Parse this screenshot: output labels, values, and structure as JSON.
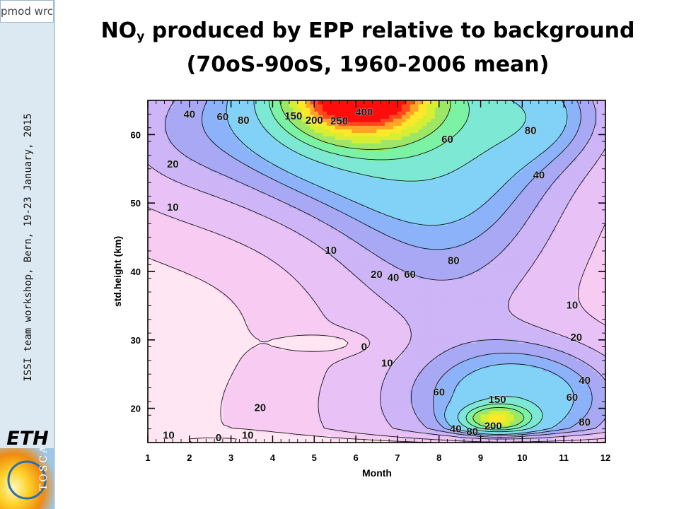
{
  "header": {
    "title_line1_pre": "NO",
    "title_line1_sub": "y",
    "title_line1_post": " produced by EPP relative to background",
    "title_line2": "(70oS-90oS, 1960-2006 mean)"
  },
  "sidebar": {
    "logo_text": "pmod wrc",
    "workshop_text": "ISSI team workshop, Bern, 19-23 January, 2015",
    "eth_logo": "ETH",
    "tosca_logo": "TOSCA"
  },
  "colors": {
    "sidebar_bg": "#dce9f3",
    "levels": [
      "#ffe6f2",
      "#f8ccf2",
      "#e8c2f6",
      "#cdb5f7",
      "#a8a8f5",
      "#8cb2f9",
      "#82d2f7",
      "#7de8d3",
      "#7bf2a4",
      "#9ce766",
      "#d7ef32",
      "#ffe829",
      "#ffa427",
      "#ff4a1d",
      "#ff0d0d"
    ]
  },
  "chart_data": {
    "type": "contour",
    "xlabel": "Month",
    "ylabel": "std.height (km)",
    "xlim": [
      1,
      12
    ],
    "ylim": [
      15,
      65
    ],
    "xticks": [
      "1",
      "2",
      "3",
      "4",
      "5",
      "6",
      "7",
      "8",
      "9",
      "10",
      "11",
      "12"
    ],
    "yticks": [
      "20",
      "30",
      "40",
      "50",
      "60"
    ],
    "levels": [
      0,
      10,
      20,
      40,
      60,
      80,
      100,
      150,
      200,
      250,
      300,
      350,
      400,
      450,
      500
    ],
    "contour_labels": [
      {
        "text": "400",
        "x": 6.2,
        "y": 63.2
      },
      {
        "text": "250",
        "x": 5.6,
        "y": 61.9
      },
      {
        "text": "200",
        "x": 5.0,
        "y": 62.0
      },
      {
        "text": "150",
        "x": 4.5,
        "y": 62.6
      },
      {
        "text": "80",
        "x": 3.3,
        "y": 62.0
      },
      {
        "text": "60",
        "x": 2.8,
        "y": 62.5
      },
      {
        "text": "40",
        "x": 2.0,
        "y": 62.9
      },
      {
        "text": "20",
        "x": 1.6,
        "y": 55.6
      },
      {
        "text": "10",
        "x": 1.6,
        "y": 49.3
      },
      {
        "text": "60",
        "x": 8.2,
        "y": 59.2
      },
      {
        "text": "80",
        "x": 10.2,
        "y": 60.5
      },
      {
        "text": "40",
        "x": 10.4,
        "y": 54.0
      },
      {
        "text": "80",
        "x": 8.35,
        "y": 41.5
      },
      {
        "text": "10",
        "x": 5.4,
        "y": 43.0
      },
      {
        "text": "20",
        "x": 6.5,
        "y": 39.5
      },
      {
        "text": "40",
        "x": 6.9,
        "y": 39.0
      },
      {
        "text": "60",
        "x": 7.3,
        "y": 39.5
      },
      {
        "text": "10",
        "x": 11.2,
        "y": 35.0
      },
      {
        "text": "20",
        "x": 11.3,
        "y": 30.3
      },
      {
        "text": "0",
        "x": 6.2,
        "y": 28.9
      },
      {
        "text": "10",
        "x": 6.75,
        "y": 26.5
      },
      {
        "text": "60",
        "x": 8.0,
        "y": 22.3
      },
      {
        "text": "40",
        "x": 11.5,
        "y": 24.0
      },
      {
        "text": "60",
        "x": 11.2,
        "y": 21.5
      },
      {
        "text": "80",
        "x": 11.5,
        "y": 17.9
      },
      {
        "text": "150",
        "x": 9.4,
        "y": 21.2
      },
      {
        "text": "200",
        "x": 9.3,
        "y": 17.3
      },
      {
        "text": "80",
        "x": 8.8,
        "y": 16.5
      },
      {
        "text": "40",
        "x": 8.4,
        "y": 16.9
      },
      {
        "text": "20",
        "x": 3.7,
        "y": 20.0
      },
      {
        "text": "10",
        "x": 3.4,
        "y": 16.0
      },
      {
        "text": "10",
        "x": 1.5,
        "y": 16.0
      },
      {
        "text": "0",
        "x": 2.7,
        "y": 15.6
      }
    ],
    "grid": false,
    "legend": "none"
  }
}
